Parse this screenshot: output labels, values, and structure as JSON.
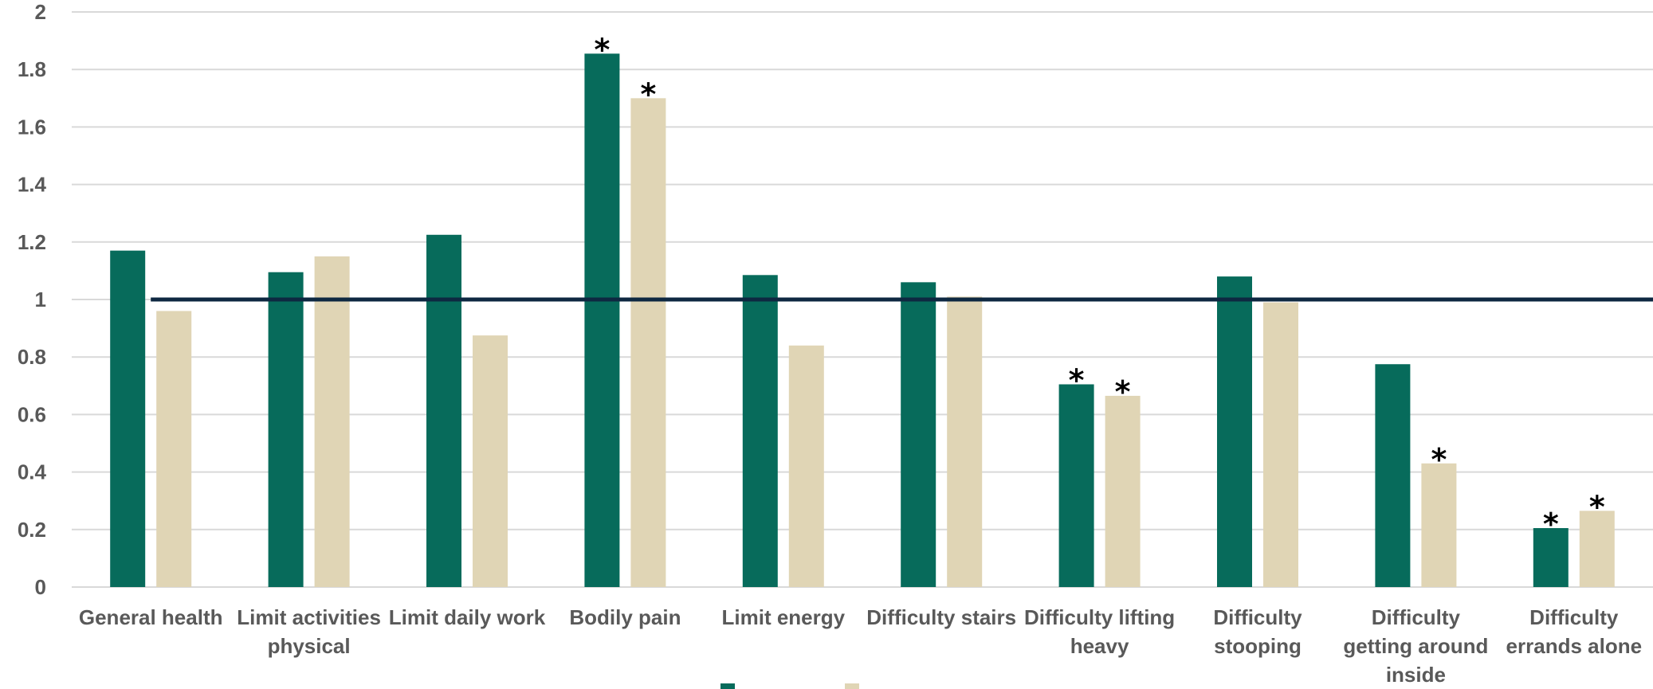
{
  "chart_data": {
    "type": "bar",
    "title": "",
    "xlabel": "",
    "ylabel": "",
    "ylim": [
      0,
      2
    ],
    "yticks": [
      "0",
      "0.2",
      "0.4",
      "0.6",
      "0.8",
      "1",
      "1.2",
      "1.4",
      "1.6",
      "1.8",
      "2"
    ],
    "grid": true,
    "reference_line": 1,
    "legend_position": "bottom",
    "categories": [
      [
        "General health"
      ],
      [
        "Limit activities",
        "physical"
      ],
      [
        "Limit daily work"
      ],
      [
        "Bodily pain"
      ],
      [
        "Limit energy"
      ],
      [
        "Difficulty stairs"
      ],
      [
        "Difficulty lifting",
        "heavy"
      ],
      [
        "Difficulty",
        "stooping"
      ],
      [
        "Difficulty",
        "getting around",
        "inside"
      ],
      [
        "Difficulty",
        "errands alone"
      ]
    ],
    "series": [
      {
        "name": "",
        "color": "#076B5B",
        "values": [
          1.17,
          1.095,
          1.225,
          1.855,
          1.085,
          1.06,
          0.705,
          1.08,
          0.775,
          0.205
        ],
        "significant": [
          false,
          false,
          false,
          true,
          false,
          false,
          true,
          false,
          false,
          true
        ]
      },
      {
        "name": "",
        "color": "#E0D5B5",
        "values": [
          0.96,
          1.15,
          0.875,
          1.7,
          0.84,
          1.01,
          0.665,
          0.99,
          0.43,
          0.265
        ],
        "significant": [
          false,
          false,
          false,
          true,
          false,
          false,
          true,
          false,
          true,
          true
        ]
      }
    ],
    "significance_marker": "*",
    "reference_line_color": "#0E2841",
    "grid_color": "#D9D9D9"
  }
}
